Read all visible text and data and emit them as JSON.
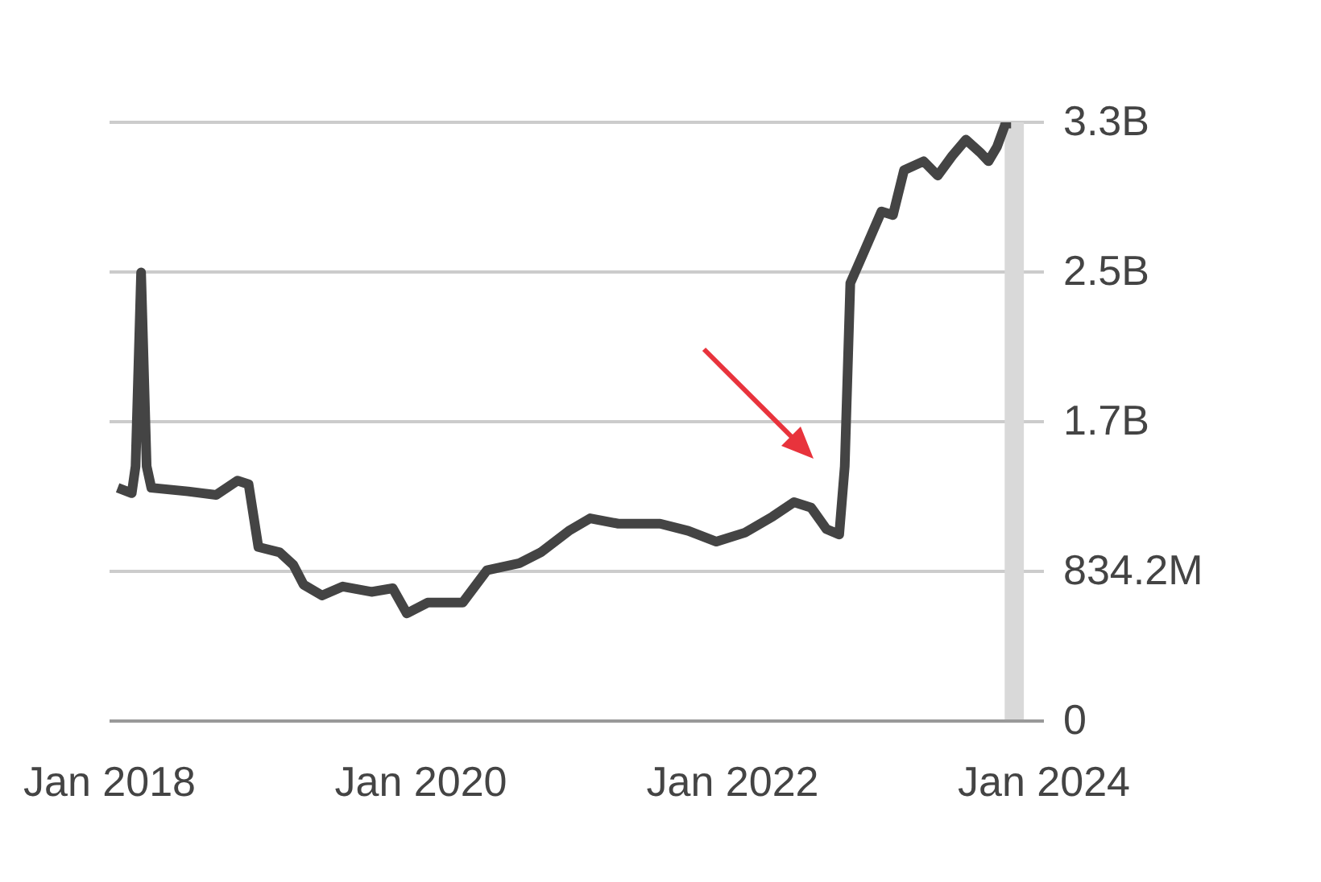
{
  "chart_data": {
    "type": "line",
    "x": [
      "2018-01-20",
      "2018-02-22",
      "2018-03-03",
      "2018-03-16",
      "2018-03-29",
      "2018-04-09",
      "2018-07-04",
      "2018-09-08",
      "2018-10-28",
      "2018-11-23",
      "2018-12-16",
      "2019-02-04",
      "2019-03-08",
      "2019-04-01",
      "2019-05-14",
      "2019-07-02",
      "2019-09-07",
      "2019-10-27",
      "2019-11-29",
      "2020-01-17",
      "2020-04-08",
      "2020-06-04",
      "2020-08-19",
      "2020-10-08",
      "2020-12-13",
      "2021-02-01",
      "2021-04-08",
      "2021-07-15",
      "2021-09-19",
      "2021-11-24",
      "2022-01-30",
      "2022-04-05",
      "2022-05-25",
      "2022-07-04",
      "2022-08-09",
      "2022-09-08",
      "2022-09-21",
      "2022-10-04",
      "2022-11-06",
      "2022-12-16",
      "2023-01-12",
      "2023-02-07",
      "2023-03-25",
      "2023-04-27",
      "2023-05-31",
      "2023-07-02",
      "2023-08-04",
      "2023-08-24",
      "2023-09-13",
      "2023-10-03",
      "2023-10-16"
    ],
    "series": [
      {
        "color": "#444444",
        "values": [
          1300000000,
          1270000000,
          1420000000,
          2500000000,
          1420000000,
          1300000000,
          1280000000,
          1260000000,
          1340000000,
          1320000000,
          970000000,
          940000000,
          870000000,
          760000000,
          700000000,
          750000000,
          720000000,
          740000000,
          600000000,
          660000000,
          660000000,
          840000000,
          880000000,
          940000000,
          1060000000,
          1130000000,
          1100000000,
          1100000000,
          1060000000,
          1000000000,
          1050000000,
          1140000000,
          1220000000,
          1190000000,
          1070000000,
          1040000000,
          1420000000,
          2440000000,
          2620000000,
          2840000000,
          2820000000,
          3070000000,
          3120000000,
          3040000000,
          3150000000,
          3240000000,
          3170000000,
          3120000000,
          3200000000,
          3330000000,
          3330000000
        ]
      }
    ],
    "xlim": [
      "2018-01-01",
      "2024-01-01"
    ],
    "xticks": [
      {
        "value": "2018-01-01",
        "label": "Jan 2018"
      },
      {
        "value": "2020-01-01",
        "label": "Jan 2020"
      },
      {
        "value": "2022-01-01",
        "label": "Jan 2022"
      },
      {
        "value": "2024-01-01",
        "label": "Jan 2024"
      }
    ],
    "ylim": [
      0,
      3336800000
    ],
    "yticks": [
      0,
      {
        "value": 834200000,
        "label": "834.2M"
      },
      {
        "value": 1668400000,
        "label": "1.7B"
      },
      {
        "value": 2502600000,
        "label": "2.5B"
      },
      {
        "value": 3336800000,
        "label": "3.3B"
      }
    ],
    "bands": [
      {
        "axis": "x",
        "from": "2023-10-01",
        "to": "2023-11-15",
        "color": "#d9d9d9"
      }
    ],
    "grid": "y",
    "marker": "none",
    "line_style": "solid"
  }
}
